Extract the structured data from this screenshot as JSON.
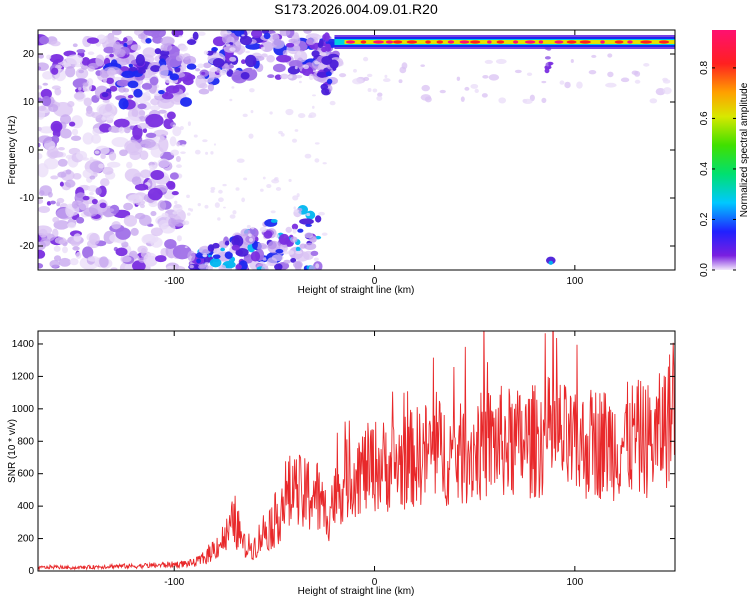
{
  "title": "S173.2026.004.09.01.R20",
  "chart_data": [
    {
      "type": "heatmap",
      "xlabel": "Height of straight line (km)",
      "ylabel": "Frequency (Hz)",
      "xlim": [
        -168,
        150
      ],
      "ylim": [
        -25,
        25
      ],
      "xticks": [
        -100,
        0,
        100
      ],
      "yticks": [
        -20,
        -10,
        0,
        10,
        20
      ],
      "xtick_labels": [
        "-100",
        "0",
        "100"
      ],
      "ytick_labels": [
        "-20",
        "-10",
        "0",
        "10",
        "20"
      ],
      "colorbar": {
        "label": "Normalized spectral amplitude",
        "range": [
          0,
          0.95
        ],
        "ticks": [
          0,
          0.2,
          0.4,
          0.6,
          0.8
        ],
        "tick_labels": [
          "0.0",
          "0.2",
          "0.4",
          "0.6",
          "0.8"
        ]
      },
      "features": {
        "signal_line_frequency_hz": 22.5,
        "signal_line_x_range_km": [
          -20,
          150
        ],
        "noise_region_x_range_km": [
          -168,
          -80
        ]
      }
    },
    {
      "type": "line",
      "xlabel": "Height of straight line (km)",
      "ylabel": "SNR (10 * v/v)",
      "xlim": [
        -168,
        150
      ],
      "ylim": [
        0,
        1480
      ],
      "xticks": [
        -100,
        0,
        100
      ],
      "yticks": [
        0,
        200,
        400,
        600,
        800,
        1000,
        1200,
        1400
      ],
      "xtick_labels": [
        "-100",
        "0",
        "100"
      ],
      "ytick_labels": [
        "0",
        "200",
        "400",
        "600",
        "800",
        "1000",
        "1200",
        "1400"
      ],
      "color": "#e8282a",
      "series": [
        {
          "x": [
            -168,
            -160,
            -150,
            -140,
            -130,
            -120,
            -110,
            -100,
            -90,
            -85,
            -80,
            -75,
            -72,
            -70,
            -68,
            -65,
            -60,
            -55,
            -50,
            -45,
            -40,
            -35,
            -30,
            -25,
            -20,
            -15,
            -10,
            -5,
            0,
            10,
            20,
            30,
            40,
            50,
            60,
            70,
            80,
            90,
            100,
            110,
            120,
            130,
            140,
            145,
            150
          ],
          "values": [
            20,
            25,
            20,
            25,
            30,
            30,
            35,
            40,
            50,
            80,
            140,
            200,
            250,
            320,
            250,
            150,
            150,
            250,
            300,
            450,
            480,
            450,
            500,
            350,
            450,
            550,
            600,
            620,
            650,
            650,
            700,
            750,
            700,
            750,
            800,
            780,
            800,
            850,
            750,
            800,
            780,
            820,
            800,
            900,
            1000
          ]
        }
      ]
    }
  ]
}
